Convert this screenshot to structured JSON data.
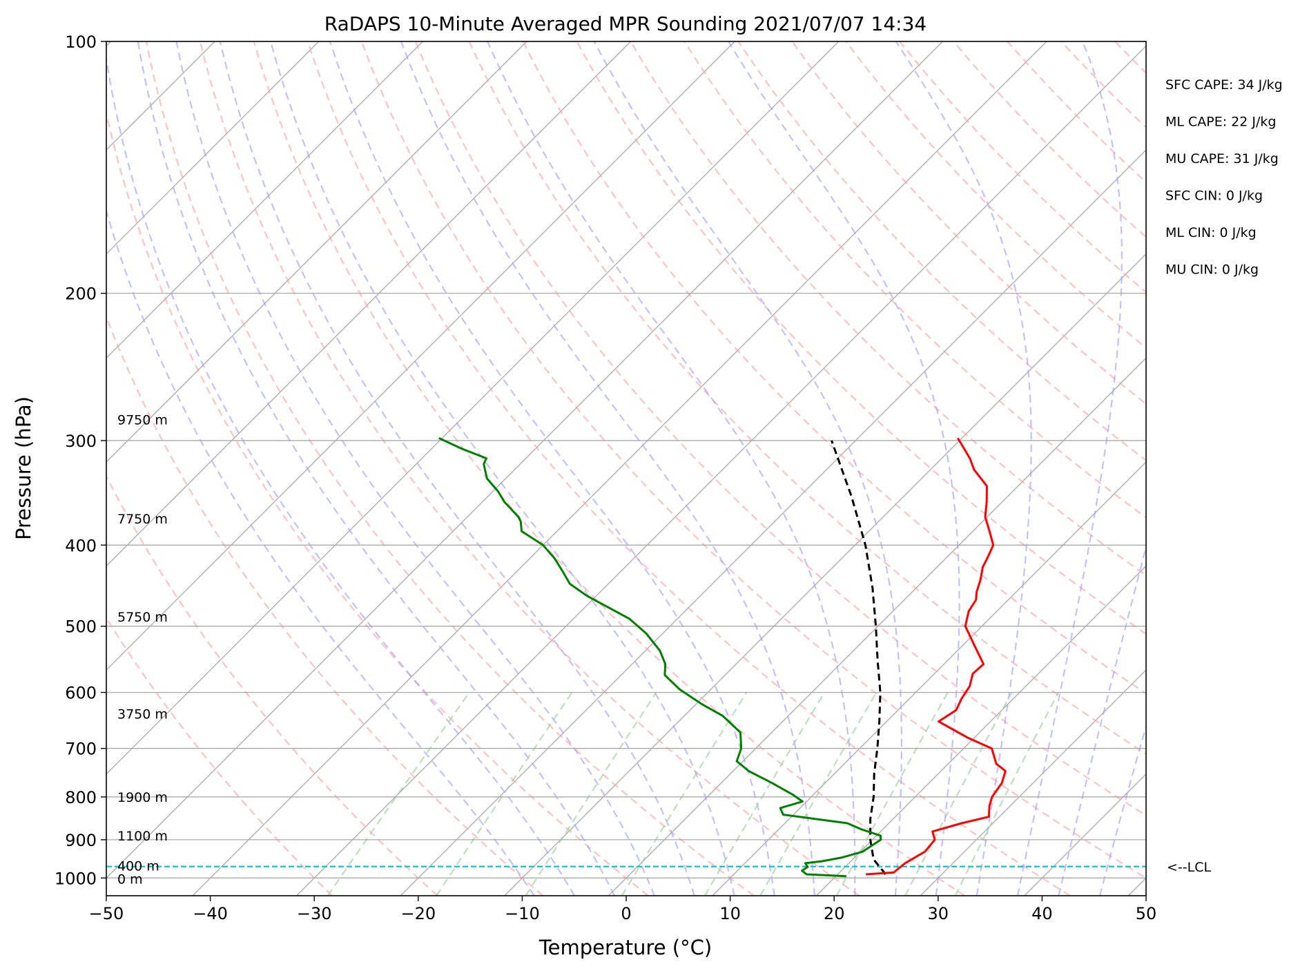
{
  "chart_data": {
    "type": "skew-t",
    "title": "RaDAPS 10-Minute Averaged MPR Sounding 2021/07/07 14:34",
    "xlabel": "Temperature (°C)",
    "ylabel": "Pressure (hPa)",
    "xlim": [
      -50,
      50
    ],
    "ylim_hpa": [
      1050,
      100
    ],
    "log_pressure_axis": true,
    "x_ticks": [
      -50,
      -40,
      -30,
      -20,
      -10,
      0,
      10,
      20,
      30,
      40,
      50
    ],
    "x_tick_labels": [
      "−50",
      "−40",
      "−30",
      "−20",
      "−10",
      "0",
      "10",
      "20",
      "30",
      "40",
      "50"
    ],
    "y_ticks": [
      100,
      200,
      300,
      400,
      500,
      600,
      700,
      800,
      900,
      1000
    ],
    "y_tick_labels": [
      "100",
      "200",
      "300",
      "400",
      "500",
      "600",
      "700",
      "800",
      "900",
      "1000"
    ],
    "grid": true,
    "isotherm_skew_deg_per_log": 45,
    "background": {
      "isotherms_color": "#a9a9a9",
      "dry_adiabat_color": "#ff9f9f",
      "moist_adiabat_color": "#9f9fff",
      "mixing_ratio_color": "#9fd19f",
      "lcl_line_color": "#17becf"
    },
    "temperature": {
      "color": "#ff0000",
      "points": [
        [
          990,
          22.7
        ],
        [
          985,
          25.2
        ],
        [
          960,
          25.4
        ],
        [
          930,
          26.2
        ],
        [
          900,
          26.0
        ],
        [
          880,
          25.0
        ],
        [
          860,
          27.0
        ],
        [
          845,
          29.0
        ],
        [
          820,
          28.0
        ],
        [
          800,
          27.4
        ],
        [
          770,
          27.0
        ],
        [
          745,
          26.2
        ],
        [
          730,
          24.6
        ],
        [
          700,
          22.7
        ],
        [
          680,
          19.4
        ],
        [
          650,
          15.0
        ],
        [
          630,
          15.6
        ],
        [
          610,
          15.0
        ],
        [
          590,
          14.6
        ],
        [
          570,
          13.7
        ],
        [
          555,
          13.8
        ],
        [
          530,
          11.4
        ],
        [
          500,
          8.4
        ],
        [
          480,
          7.3
        ],
        [
          465,
          6.9
        ],
        [
          455,
          6.2
        ],
        [
          440,
          5.4
        ],
        [
          425,
          4.4
        ],
        [
          415,
          4.0
        ],
        [
          400,
          3.3
        ],
        [
          385,
          1.6
        ],
        [
          370,
          -0.2
        ],
        [
          355,
          -1.5
        ],
        [
          340,
          -3.0
        ],
        [
          325,
          -5.8
        ],
        [
          315,
          -7.3
        ],
        [
          298,
          -10.4
        ]
      ]
    },
    "dewpoint": {
      "color": "#008000",
      "points": [
        [
          995,
          21.0
        ],
        [
          990,
          17.0
        ],
        [
          980,
          16.2
        ],
        [
          970,
          16.4
        ],
        [
          960,
          15.8
        ],
        [
          955,
          17.2
        ],
        [
          945,
          18.8
        ],
        [
          930,
          20.2
        ],
        [
          915,
          20.5
        ],
        [
          900,
          20.8
        ],
        [
          890,
          20.4
        ],
        [
          875,
          18.0
        ],
        [
          860,
          16.0
        ],
        [
          840,
          9.0
        ],
        [
          825,
          8.1
        ],
        [
          810,
          9.6
        ],
        [
          795,
          8.0
        ],
        [
          770,
          4.9
        ],
        [
          745,
          1.5
        ],
        [
          725,
          -0.6
        ],
        [
          700,
          -1.4
        ],
        [
          670,
          -3.0
        ],
        [
          640,
          -6.3
        ],
        [
          620,
          -9.4
        ],
        [
          595,
          -13.0
        ],
        [
          572,
          -15.8
        ],
        [
          555,
          -16.8
        ],
        [
          535,
          -18.6
        ],
        [
          510,
          -21.6
        ],
        [
          490,
          -24.6
        ],
        [
          475,
          -27.7
        ],
        [
          460,
          -30.9
        ],
        [
          445,
          -33.7
        ],
        [
          430,
          -35.6
        ],
        [
          415,
          -37.6
        ],
        [
          400,
          -40.0
        ],
        [
          385,
          -43.4
        ],
        [
          375,
          -44.4
        ],
        [
          370,
          -45.1
        ],
        [
          355,
          -47.9
        ],
        [
          345,
          -49.5
        ],
        [
          333,
          -51.8
        ],
        [
          320,
          -53.5
        ],
        [
          315,
          -53.8
        ],
        [
          307,
          -57.0
        ],
        [
          298,
          -60.3
        ]
      ]
    },
    "parcel": {
      "color": "#000000",
      "style": "dashed",
      "points": [
        [
          990,
          24.6
        ],
        [
          950,
          22.0
        ],
        [
          900,
          19.8
        ],
        [
          850,
          17.8
        ],
        [
          800,
          16.0
        ],
        [
          750,
          13.8
        ],
        [
          700,
          11.7
        ],
        [
          650,
          9.3
        ],
        [
          600,
          6.6
        ],
        [
          550,
          3.3
        ],
        [
          500,
          -0.2
        ],
        [
          450,
          -4.2
        ],
        [
          400,
          -9.0
        ],
        [
          350,
          -15.0
        ],
        [
          300,
          -22.3
        ]
      ]
    },
    "lcl_hpa": 969,
    "lcl_label": "<--LCL",
    "height_labels": [
      {
        "p": 1002,
        "text": "0 m"
      },
      {
        "p": 967,
        "text": "400 m"
      },
      {
        "p": 890,
        "text": "1100 m"
      },
      {
        "p": 800,
        "text": "1900 m"
      },
      {
        "p": 636,
        "text": "3750 m"
      },
      {
        "p": 487,
        "text": "5750 m"
      },
      {
        "p": 372,
        "text": "7750 m"
      },
      {
        "p": 283,
        "text": "9750 m"
      }
    ],
    "stats": [
      "SFC CAPE: 34 J/kg",
      "ML CAPE: 22 J/kg",
      "MU CAPE: 31 J/kg",
      "SFC CIN: 0 J/kg",
      "ML CIN: 0 J/kg",
      "MU CIN: 0 J/kg"
    ]
  }
}
